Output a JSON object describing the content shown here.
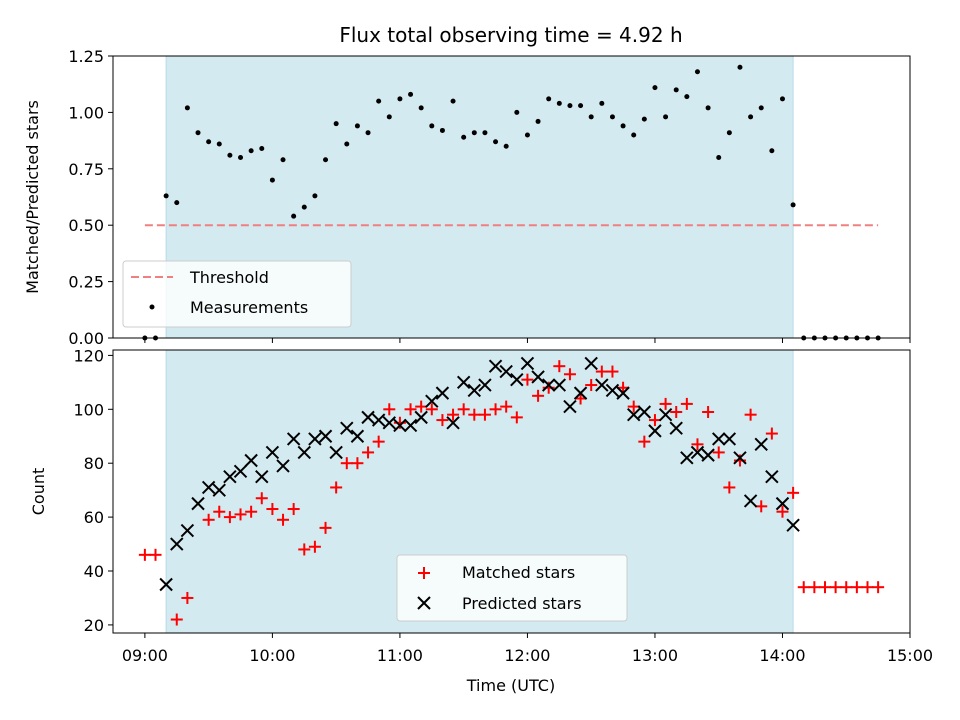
{
  "chart_data": [
    {
      "type": "scatter",
      "title": "Flux total observing time = 4.92 h",
      "ylabel": "Matched/Predicted stars",
      "xlabel": "",
      "xlim": [
        "08:45",
        "15:00"
      ],
      "ylim": [
        0,
        1.25
      ],
      "yticks": [
        "0.00",
        "0.25",
        "0.50",
        "0.75",
        "1.00",
        "1.25"
      ],
      "observing_window": {
        "start": "09:10",
        "end": "14:05",
        "color": "#d3eaf0"
      },
      "threshold": {
        "name": "Threshold",
        "value": 0.5,
        "x_start": "09:00",
        "x_end": "14:45",
        "color": "#f08080"
      },
      "series": [
        {
          "name": "Measurements",
          "color": "#000000",
          "marker": "dot",
          "x": [
            "09:00",
            "09:05",
            "09:10",
            "09:15",
            "09:20",
            "09:25",
            "09:30",
            "09:35",
            "09:40",
            "09:45",
            "09:50",
            "09:55",
            "10:00",
            "10:05",
            "10:10",
            "10:15",
            "10:20",
            "10:25",
            "10:30",
            "10:35",
            "10:40",
            "10:45",
            "10:50",
            "10:55",
            "11:00",
            "11:05",
            "11:10",
            "11:15",
            "11:20",
            "11:25",
            "11:30",
            "11:35",
            "11:40",
            "11:45",
            "11:50",
            "11:55",
            "12:00",
            "12:05",
            "12:10",
            "12:15",
            "12:20",
            "12:25",
            "12:30",
            "12:35",
            "12:40",
            "12:45",
            "12:50",
            "12:55",
            "13:00",
            "13:05",
            "13:10",
            "13:15",
            "13:20",
            "13:25",
            "13:30",
            "13:35",
            "13:40",
            "13:45",
            "13:50",
            "13:55",
            "14:00",
            "14:05",
            "14:10",
            "14:15",
            "14:20",
            "14:25",
            "14:30",
            "14:35",
            "14:40",
            "14:45"
          ],
          "y": [
            0.0,
            0.0,
            0.63,
            0.6,
            1.02,
            0.91,
            0.87,
            0.86,
            0.81,
            0.8,
            0.83,
            0.84,
            0.7,
            0.79,
            0.54,
            0.58,
            0.63,
            0.79,
            0.95,
            0.86,
            0.94,
            0.91,
            1.05,
            0.98,
            1.06,
            1.08,
            1.02,
            0.94,
            0.92,
            1.05,
            0.89,
            0.91,
            0.91,
            0.87,
            0.85,
            1.0,
            0.9,
            0.96,
            1.06,
            1.04,
            1.03,
            1.03,
            0.98,
            1.04,
            0.98,
            0.94,
            0.9,
            0.97,
            1.11,
            0.98,
            1.1,
            1.07,
            1.18,
            1.02,
            0.8,
            0.91,
            1.2,
            0.98,
            1.02,
            0.83,
            1.06,
            0.59,
            0.0,
            0.0,
            0.0,
            0.0,
            0.0,
            0.0,
            0.0,
            0.0
          ]
        }
      ]
    },
    {
      "type": "scatter",
      "title": "",
      "ylabel": "Count",
      "xlabel": "Time (UTC)",
      "xlim": [
        "08:45",
        "15:00"
      ],
      "xticks": [
        "09:00",
        "10:00",
        "11:00",
        "12:00",
        "13:00",
        "14:00",
        "15:00"
      ],
      "ylim": [
        17,
        122
      ],
      "yticks": [
        "20",
        "40",
        "60",
        "80",
        "100",
        "120"
      ],
      "observing_window": {
        "start": "09:10",
        "end": "14:05",
        "color": "#d3eaf0"
      },
      "series": [
        {
          "name": "Matched stars",
          "color": "#ff0000",
          "marker": "plus",
          "x": [
            "09:00",
            "09:05",
            "09:15",
            "09:20",
            "09:30",
            "09:35",
            "09:40",
            "09:45",
            "09:50",
            "09:55",
            "10:00",
            "10:05",
            "10:10",
            "10:15",
            "10:20",
            "10:25",
            "10:30",
            "10:35",
            "10:40",
            "10:45",
            "10:50",
            "10:55",
            "11:00",
            "11:05",
            "11:10",
            "11:15",
            "11:20",
            "11:25",
            "11:30",
            "11:35",
            "11:40",
            "11:45",
            "11:50",
            "11:55",
            "12:00",
            "12:05",
            "12:10",
            "12:15",
            "12:20",
            "12:25",
            "12:30",
            "12:35",
            "12:40",
            "12:45",
            "12:50",
            "12:55",
            "13:00",
            "13:05",
            "13:10",
            "13:15",
            "13:20",
            "13:25",
            "13:30",
            "13:35",
            "13:40",
            "13:45",
            "13:50",
            "13:55",
            "14:00",
            "14:05",
            "14:10",
            "14:15",
            "14:20",
            "14:25",
            "14:30",
            "14:35",
            "14:40",
            "14:45"
          ],
          "y": [
            46,
            46,
            22,
            30,
            59,
            62,
            60,
            61,
            62,
            67,
            63,
            59,
            63,
            48,
            49,
            56,
            71,
            80,
            80,
            84,
            88,
            100,
            95,
            100,
            101,
            100,
            96,
            98,
            100,
            98,
            98,
            100,
            101,
            97,
            111,
            105,
            108,
            116,
            113,
            104,
            109,
            114,
            114,
            108,
            101,
            88,
            96,
            102,
            99,
            102,
            87,
            99,
            84,
            71,
            81,
            98,
            64,
            91,
            62,
            69,
            34,
            34,
            34,
            34,
            34,
            34,
            34,
            34
          ]
        },
        {
          "name": "Predicted stars",
          "color": "#000000",
          "marker": "x",
          "x": [
            "09:10",
            "09:15",
            "09:20",
            "09:25",
            "09:30",
            "09:35",
            "09:40",
            "09:45",
            "09:50",
            "09:55",
            "10:00",
            "10:05",
            "10:10",
            "10:15",
            "10:20",
            "10:25",
            "10:30",
            "10:35",
            "10:40",
            "10:45",
            "10:50",
            "10:55",
            "11:00",
            "11:05",
            "11:10",
            "11:15",
            "11:20",
            "11:25",
            "11:30",
            "11:35",
            "11:40",
            "11:45",
            "11:50",
            "11:55",
            "12:00",
            "12:05",
            "12:10",
            "12:15",
            "12:20",
            "12:25",
            "12:30",
            "12:35",
            "12:40",
            "12:45",
            "12:50",
            "12:55",
            "13:00",
            "13:05",
            "13:10",
            "13:15",
            "13:20",
            "13:25",
            "13:30",
            "13:35",
            "13:40",
            "13:45",
            "13:50",
            "13:55",
            "14:00",
            "14:05"
          ],
          "y": [
            35,
            50,
            55,
            65,
            71,
            70,
            75,
            77,
            81,
            75,
            84,
            79,
            89,
            84,
            89,
            90,
            84,
            93,
            90,
            97,
            96,
            95,
            94,
            94,
            97,
            103,
            106,
            95,
            110,
            107,
            109,
            116,
            114,
            111,
            117,
            112,
            109,
            109,
            101,
            106,
            117,
            109,
            107,
            106,
            98,
            99,
            92,
            98,
            93,
            82,
            84,
            83,
            89,
            89,
            82,
            66,
            87,
            75,
            65,
            57
          ]
        }
      ]
    }
  ]
}
